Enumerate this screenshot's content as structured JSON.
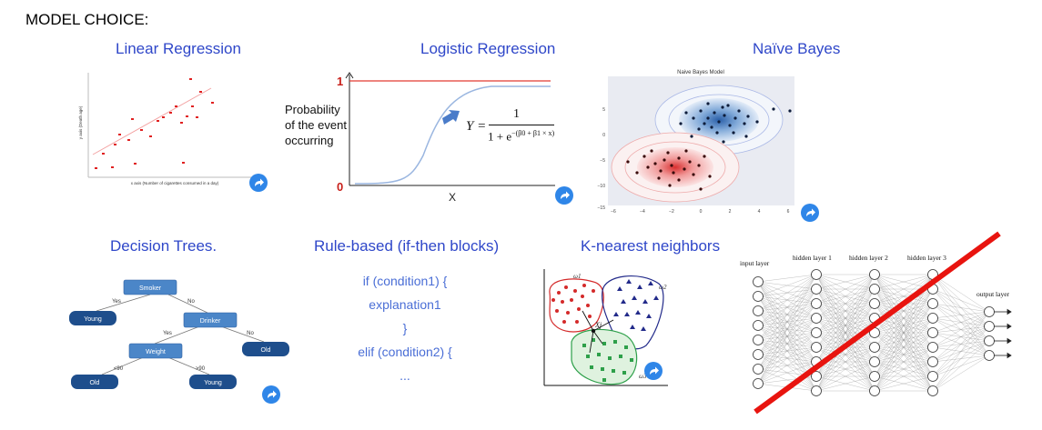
{
  "heading": "MODEL CHOICE:",
  "models": {
    "linear": {
      "title": "Linear Regression",
      "xlabel": "x axis (Number of cigarettes consumed in a day)",
      "ylabel": "y axis (Death age)"
    },
    "logistic": {
      "title": "Logistic Regression",
      "y_top": "1",
      "y_bottom": "0",
      "ylabel_line1": "Probability",
      "ylabel_line2": "of the event",
      "ylabel_line3": "occurring",
      "xlabel": "X",
      "eq_left": "Y =",
      "eq_num": "1",
      "eq_den": "1 + e",
      "eq_exp": "−(β0 + β1 × x)"
    },
    "naive_bayes": {
      "title": "Naïve Bayes",
      "plot_title": "Naive Bayes Model",
      "yticks": [
        "5",
        "0",
        "−5",
        "−10",
        "−15"
      ],
      "xticks": [
        "−6",
        "−4",
        "−2",
        "0",
        "2",
        "4",
        "6"
      ]
    },
    "decision_trees": {
      "title": "Decision Trees.",
      "nodes": {
        "smoker": "Smoker",
        "young1": "Young",
        "drinker": "Drinker",
        "weight": "Weight",
        "old1": "Old",
        "old2": "Old",
        "young2": "Young"
      },
      "edges": {
        "yes1": "Yes",
        "no1": "No",
        "yes2": "Yes",
        "no2": "No",
        "lt90": "<90",
        "gt90": ">90"
      }
    },
    "rule_based": {
      "title": "Rule-based  (if-then blocks)",
      "lines": [
        "if (condition1) {",
        "explanation1",
        "}",
        "elif (condition2) {",
        "..."
      ]
    },
    "knn": {
      "title": "K-nearest neighbors",
      "labels": {
        "w1": "ω1",
        "w2": "ω2",
        "w3": "ω3",
        "xj": "Xj"
      }
    },
    "neural_net": {
      "input_layer": "input layer",
      "hidden1": "hidden layer 1",
      "hidden2": "hidden layer 2",
      "hidden3": "hidden layer 3",
      "output_layer": "output layer"
    }
  },
  "colors": {
    "title_blue": "#2f47c9",
    "link_badge": "#2f86e8",
    "cross_red": "#e8140f",
    "tree_node": "#1e4e8c"
  }
}
